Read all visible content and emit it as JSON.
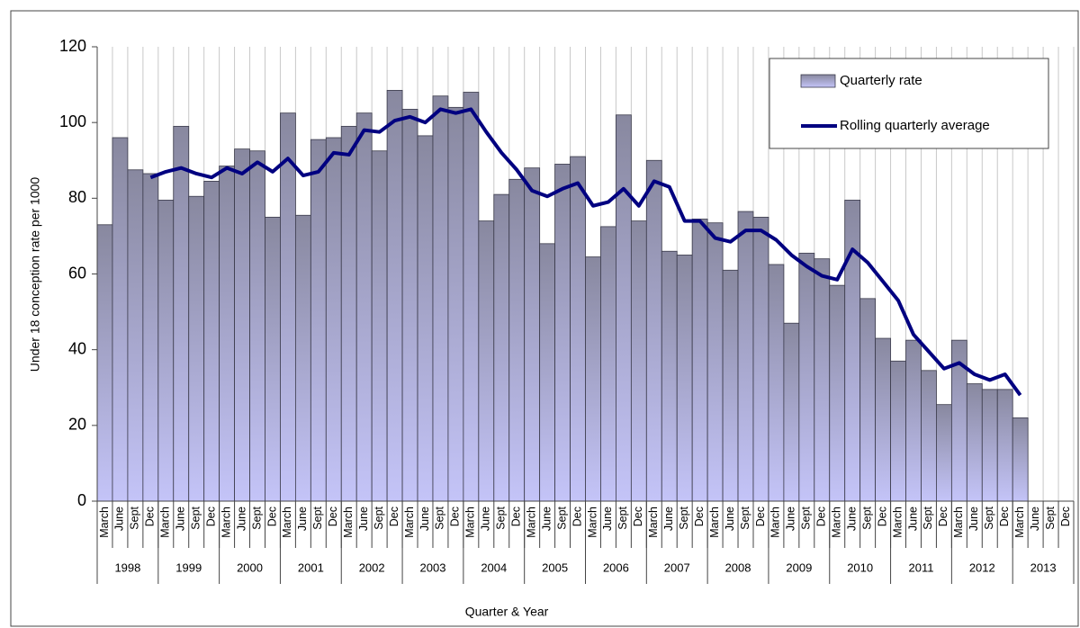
{
  "chart_data": {
    "type": "bar",
    "y_label": "Under 18 conception rate per 1000",
    "x_label": "Quarter & Year",
    "categories": [
      "March",
      "June",
      "Sept",
      "Dec",
      "March",
      "June",
      "Sept",
      "Dec",
      "March",
      "June",
      "Sept",
      "Dec",
      "March",
      "June",
      "Sept",
      "Dec",
      "March",
      "June",
      "Sept",
      "Dec",
      "March",
      "June",
      "Sept",
      "Dec",
      "March",
      "June",
      "Sept",
      "Dec",
      "March",
      "June",
      "Sept",
      "Dec",
      "March",
      "June",
      "Sept",
      "Dec",
      "March",
      "June",
      "Sept",
      "Dec",
      "March",
      "June",
      "Sept",
      "Dec",
      "March",
      "June",
      "Sept",
      "Dec",
      "March",
      "June",
      "Sept",
      "Dec",
      "March",
      "June",
      "Sept",
      "Dec",
      "March",
      "June",
      "Sept",
      "Dec",
      "March",
      "June",
      "Sept",
      "Dec"
    ],
    "years": [
      "1998",
      "1999",
      "2000",
      "2001",
      "2002",
      "2003",
      "2004",
      "2005",
      "2006",
      "2007",
      "2008",
      "2009",
      "2010",
      "2011",
      "2012",
      "2013"
    ],
    "series": [
      {
        "name": "Quarterly rate",
        "type": "bar",
        "color": "#c4c4f8",
        "values": [
          73,
          96,
          87.5,
          86.5,
          79.5,
          99,
          80.5,
          84.5,
          88.5,
          93,
          92.5,
          75,
          102.5,
          75.5,
          95.5,
          96,
          99,
          102.5,
          92.5,
          108.5,
          103.5,
          96.5,
          107,
          104,
          108,
          74,
          81,
          85,
          88,
          68,
          89,
          91,
          64.5,
          72.5,
          102,
          74,
          90,
          66,
          65,
          74.5,
          73.5,
          61,
          76.5,
          75,
          62.5,
          47,
          65.5,
          64,
          57,
          79.5,
          53.5,
          43,
          37,
          42.5,
          34.5,
          25.5,
          42.5,
          31,
          29.5,
          29.5,
          22,
          null,
          null,
          null
        ]
      },
      {
        "name": "Rolling quarterly average",
        "type": "line",
        "color": "#000080",
        "values": [
          null,
          null,
          null,
          85.5,
          87,
          88,
          86.5,
          85.5,
          88,
          86.5,
          89.5,
          87,
          90.5,
          86,
          87,
          92,
          91.5,
          98,
          97.5,
          100.5,
          101.5,
          100,
          103.5,
          102.5,
          103.5,
          97.5,
          92,
          87.5,
          82,
          80.5,
          82.5,
          84,
          78,
          79,
          82.5,
          78,
          84.5,
          83,
          74,
          74,
          69.5,
          68.5,
          71.5,
          71.5,
          69,
          65,
          62,
          59.5,
          58.5,
          66.5,
          63,
          58,
          53,
          44,
          39.5,
          35,
          36.5,
          33.5,
          32,
          33.5,
          28,
          null,
          null,
          null
        ]
      }
    ],
    "ylim": [
      0,
      120
    ],
    "yticks": [
      0,
      20,
      40,
      60,
      80,
      100,
      120
    ],
    "grid": true
  }
}
